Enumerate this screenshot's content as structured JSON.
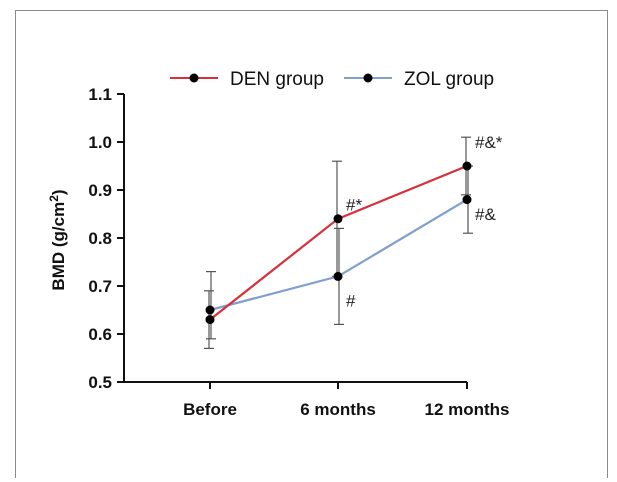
{
  "chart_data": {
    "type": "line",
    "ylabel": "BMD (g/cm",
    "ylabel_sup": "2",
    "ylabel_close": ")",
    "ylim": [
      0.5,
      1.1
    ],
    "yticks": [
      "0.5",
      "0.6",
      "0.7",
      "0.8",
      "0.9",
      "1.0",
      "1.1"
    ],
    "yticks_values": [
      0.5,
      0.6,
      0.7,
      0.8,
      0.9,
      1.0,
      1.1
    ],
    "categories": [
      "Before",
      "6 months",
      "12 months"
    ],
    "legend_position": "top",
    "grid": false,
    "series": [
      {
        "name": "DEN group",
        "color": "#d8303a",
        "values": [
          0.63,
          0.84,
          0.95
        ],
        "err_low": [
          0.57,
          0.72,
          0.89
        ],
        "err_high": [
          0.69,
          0.96,
          1.01
        ]
      },
      {
        "name": "ZOL group",
        "color": "#7f9fcf",
        "values": [
          0.65,
          0.72,
          0.88
        ],
        "err_low": [
          0.59,
          0.62,
          0.81
        ],
        "err_high": [
          0.73,
          0.82,
          0.95
        ]
      }
    ],
    "annotations": [
      {
        "text": "#*",
        "category": 1,
        "value": 0.87
      },
      {
        "text": "#",
        "category": 1,
        "value": 0.67
      },
      {
        "text": "#&*",
        "category": 2,
        "value": 1.0
      },
      {
        "text": "#&",
        "category": 2,
        "value": 0.85
      }
    ]
  }
}
